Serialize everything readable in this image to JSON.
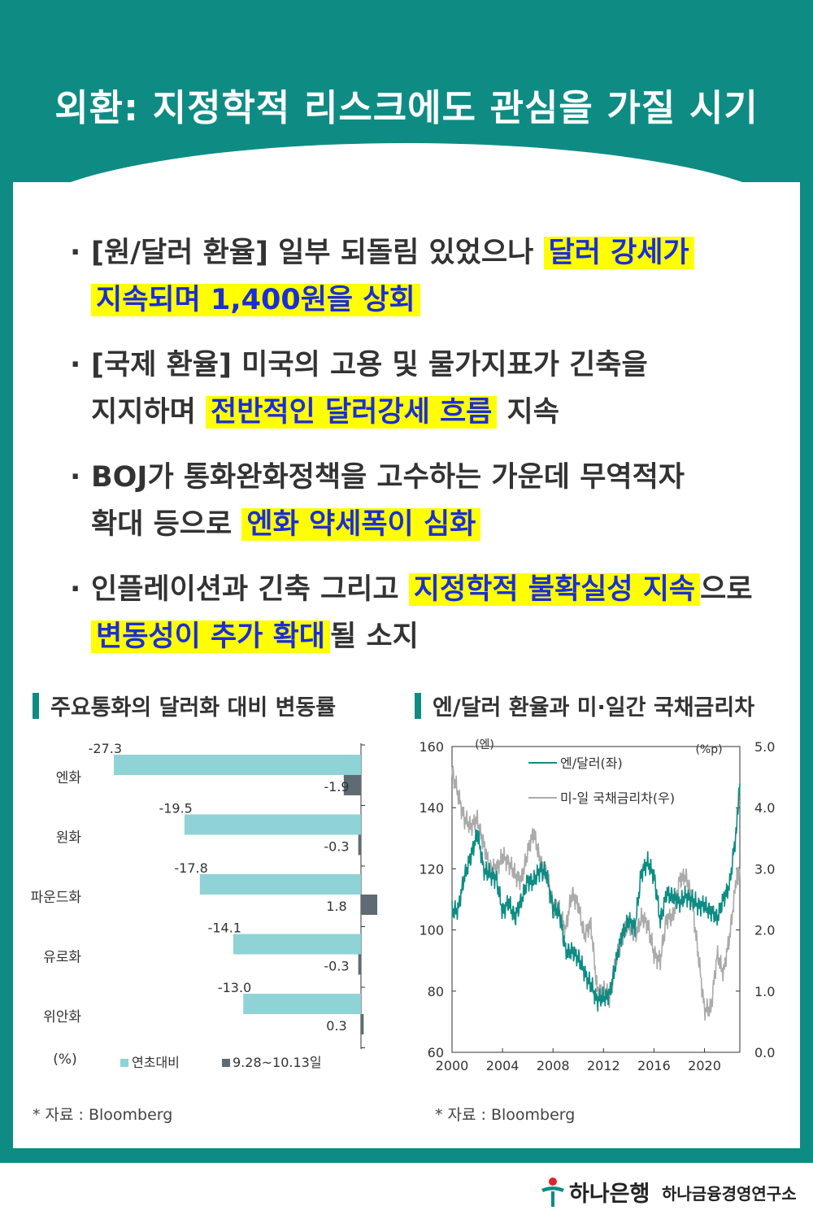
{
  "title": "외환: 지정학적 리스크에도 관심을 가질 시기",
  "bullets": [
    {
      "dot": "·",
      "pre": "[원/달러 환율] 일부 되돌림 있었으나 ",
      "hl1": "달러 강세가",
      "br": "",
      "hl2": "지속되며 1,400원을 상회",
      "post": ""
    },
    {
      "dot": "·",
      "pre": "[국제 환율] 미국의 고용 및 물가지표가 긴축을",
      "line2pre": "지지하며 ",
      "hl": "전반적인 달러강세 흐름",
      "post": " 지속"
    },
    {
      "dot": "·",
      "pre": "BOJ가 통화완화정책을 고수하는 가운데 무역적자",
      "line2pre": "확대 등으로 ",
      "hl": "엔화 약세폭이 심화",
      "post": ""
    },
    {
      "dot": "·",
      "pre": "인플레이션과 긴축 그리고 ",
      "hl": "지정학적 불확실성 지속",
      "post": "으로",
      "hl2": "변동성이 추가 확대",
      "post2": "될 소지"
    }
  ],
  "left_chart_title": "주요통화의 달러화 대비 변동률",
  "right_chart_title": "엔/달러 환율과 미·일간 국채금리차",
  "left_source": "* 자료 : Bloomberg",
  "right_source": "* 자료 : Bloomberg",
  "footer": {
    "brand": "하나은행",
    "institute": "하나금융경영연구소"
  },
  "colors": {
    "teal": "#0e8c84",
    "light_bar": "#8fd3d6",
    "dark_bar": "#5e6b73",
    "highlight": "#ffff00",
    "highlight_text": "#1a2ed8",
    "gray_line": "#aaaaaa"
  },
  "chart_data": [
    {
      "type": "bar",
      "orientation": "horizontal",
      "categories": [
        "엔화",
        "원화",
        "파운드화",
        "유로화",
        "위안화"
      ],
      "series": [
        {
          "name": "연초대비",
          "values": [
            -27.3,
            -19.5,
            -17.8,
            -14.1,
            -13.0
          ],
          "labels": [
            "-27.3",
            "-19.5",
            "-17.8",
            "-14.1",
            "-13.0"
          ]
        },
        {
          "name": "9.28~10.13일",
          "values": [
            -1.9,
            -0.3,
            1.8,
            -0.3,
            0.3
          ],
          "labels": [
            "-1.9",
            "-0.3",
            "1.8",
            "-0.3",
            "0.3"
          ]
        }
      ],
      "unit_label": "(%)",
      "xlim": [
        -30,
        1.8
      ],
      "legend": "bottom"
    },
    {
      "type": "line",
      "x_ticks": [
        "2000",
        "2004",
        "2008",
        "2012",
        "2016",
        "2020"
      ],
      "y_left_ticks": [
        "160",
        "140",
        "120",
        "100",
        "80",
        "60"
      ],
      "y_right_ticks": [
        "5.0",
        "4.0",
        "3.0",
        "2.0",
        "1.0",
        "0.0"
      ],
      "y_left_unit": "(엔)",
      "y_right_unit": "(%p)",
      "ylim_left": [
        60,
        160
      ],
      "ylim_right": [
        0,
        5
      ],
      "xlim": [
        2000,
        2022.8
      ],
      "legend": "top-center",
      "series": [
        {
          "name": "엔/달러(좌)",
          "axis": "left",
          "x": [
            2000,
            2000.5,
            2001,
            2001.5,
            2002,
            2002.5,
            2003,
            2003.5,
            2004,
            2004.5,
            2005,
            2005.5,
            2006,
            2006.5,
            2007,
            2007.5,
            2008,
            2008.5,
            2009,
            2009.5,
            2010,
            2010.5,
            2011,
            2011.5,
            2012,
            2012.5,
            2013,
            2013.5,
            2014,
            2014.5,
            2015,
            2015.5,
            2016,
            2016.5,
            2017,
            2017.5,
            2018,
            2018.5,
            2019,
            2019.5,
            2020,
            2020.5,
            2021,
            2021.5,
            2022,
            2022.5,
            2022.8
          ],
          "values": [
            106,
            107,
            118,
            124,
            132,
            120,
            118,
            117,
            106,
            109,
            104,
            110,
            116,
            116,
            120,
            118,
            107,
            106,
            93,
            93,
            91,
            86,
            82,
            77,
            78,
            79,
            90,
            99,
            103,
            101,
            119,
            122,
            118,
            103,
            112,
            111,
            109,
            111,
            110,
            108,
            108,
            106,
            104,
            110,
            115,
            132,
            148
          ]
        },
        {
          "name": "미-일 국채금리차(우)",
          "axis": "right",
          "x": [
            2000,
            2000.5,
            2001,
            2001.5,
            2002,
            2002.5,
            2003,
            2003.5,
            2004,
            2004.5,
            2005,
            2005.5,
            2006,
            2006.5,
            2007,
            2007.5,
            2008,
            2008.5,
            2009,
            2009.5,
            2010,
            2010.5,
            2011,
            2011.5,
            2012,
            2012.5,
            2013,
            2013.5,
            2014,
            2014.5,
            2015,
            2015.5,
            2016,
            2016.5,
            2017,
            2017.5,
            2018,
            2018.5,
            2019,
            2019.5,
            2020,
            2020.5,
            2021,
            2021.5,
            2022,
            2022.5,
            2022.8
          ],
          "values": [
            4.6,
            4.2,
            3.8,
            3.7,
            3.8,
            3.4,
            3.0,
            3.0,
            3.2,
            3.1,
            2.9,
            2.8,
            3.3,
            3.6,
            3.1,
            2.9,
            2.4,
            2.3,
            2.0,
            2.6,
            2.4,
            1.9,
            2.1,
            1.0,
            1.0,
            0.9,
            1.5,
            1.9,
            2.1,
            1.9,
            2.2,
            2.1,
            1.6,
            1.5,
            2.2,
            2.2,
            2.8,
            2.9,
            2.5,
            1.6,
            0.7,
            0.7,
            1.6,
            1.3,
            1.9,
            2.8,
            3.0
          ]
        }
      ]
    }
  ]
}
